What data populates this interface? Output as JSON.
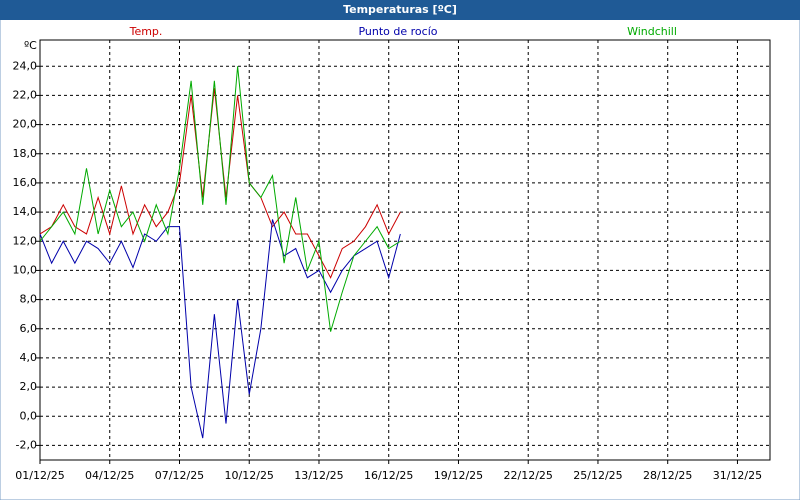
{
  "chart_data": {
    "type": "line",
    "title": "Temperaturas [ºC]",
    "y_unit": "ºC",
    "x": [
      1,
      1.5,
      2,
      2.5,
      3,
      3.5,
      4,
      4.5,
      5,
      5.5,
      6,
      6.5,
      7,
      7.5,
      8,
      8.5,
      9,
      9.5,
      10,
      10.5,
      11,
      11.5,
      12,
      12.5,
      13,
      13.5,
      14,
      14.5,
      15,
      15.5,
      16,
      16.5
    ],
    "series": [
      {
        "name": "Temp.",
        "color": "#cc0000",
        "values": [
          12.5,
          13,
          14.5,
          13,
          12.5,
          15,
          12.5,
          15.8,
          12.5,
          14.5,
          13,
          14,
          16,
          22,
          15,
          22.5,
          15,
          22,
          16,
          15,
          13,
          14,
          12.5,
          12.5,
          11,
          9.5,
          11.5,
          12,
          13,
          14.5,
          12.5,
          14
        ]
      },
      {
        "name": "Punto de rocío",
        "color": "#0000aa",
        "values": [
          12.5,
          10.5,
          12,
          10.5,
          12,
          11.5,
          10.5,
          12,
          10.2,
          12.5,
          12,
          13,
          13,
          2,
          -1.5,
          7,
          -0.5,
          8,
          1.5,
          6,
          13.5,
          11,
          11.5,
          9.5,
          10,
          8.5,
          10,
          11,
          11.5,
          12,
          9.5,
          12.5
        ]
      },
      {
        "name": "Windchill",
        "color": "#00aa00",
        "values": [
          12,
          13,
          14,
          12.5,
          17,
          12.5,
          15.5,
          13,
          14,
          12,
          14.5,
          12.5,
          17,
          23,
          14.5,
          23,
          14.5,
          24,
          16,
          15,
          16.5,
          10.5,
          15,
          10,
          12,
          5.8,
          8.5,
          11,
          12,
          13,
          11.5,
          12
        ]
      }
    ],
    "xlim": [
      1,
      32.4
    ],
    "xticks": [
      {
        "value": 1,
        "label": "01/12/25"
      },
      {
        "value": 4,
        "label": "04/12/25"
      },
      {
        "value": 7,
        "label": "07/12/25"
      },
      {
        "value": 10,
        "label": "10/12/25"
      },
      {
        "value": 13,
        "label": "13/12/25"
      },
      {
        "value": 16,
        "label": "16/12/25"
      },
      {
        "value": 19,
        "label": "19/12/25"
      },
      {
        "value": 22,
        "label": "22/12/25"
      },
      {
        "value": 25,
        "label": "25/12/25"
      },
      {
        "value": 28,
        "label": "28/12/25"
      },
      {
        "value": 31,
        "label": "31/12/25"
      }
    ],
    "ylim": [
      -3,
      25.8
    ],
    "yticks": [
      {
        "value": -2,
        "label": "-2,0"
      },
      {
        "value": 0,
        "label": "0,0"
      },
      {
        "value": 2,
        "label": "2,0"
      },
      {
        "value": 4,
        "label": "4,0"
      },
      {
        "value": 6,
        "label": "6,0"
      },
      {
        "value": 8,
        "label": "8,0"
      },
      {
        "value": 10,
        "label": "10,0"
      },
      {
        "value": 12,
        "label": "12,0"
      },
      {
        "value": 14,
        "label": "14,0"
      },
      {
        "value": 16,
        "label": "16,0"
      },
      {
        "value": 18,
        "label": "18,0"
      },
      {
        "value": 20,
        "label": "20,0"
      },
      {
        "value": 22,
        "label": "22,0"
      },
      {
        "value": 24,
        "label": "24,0"
      }
    ],
    "grid": true
  }
}
